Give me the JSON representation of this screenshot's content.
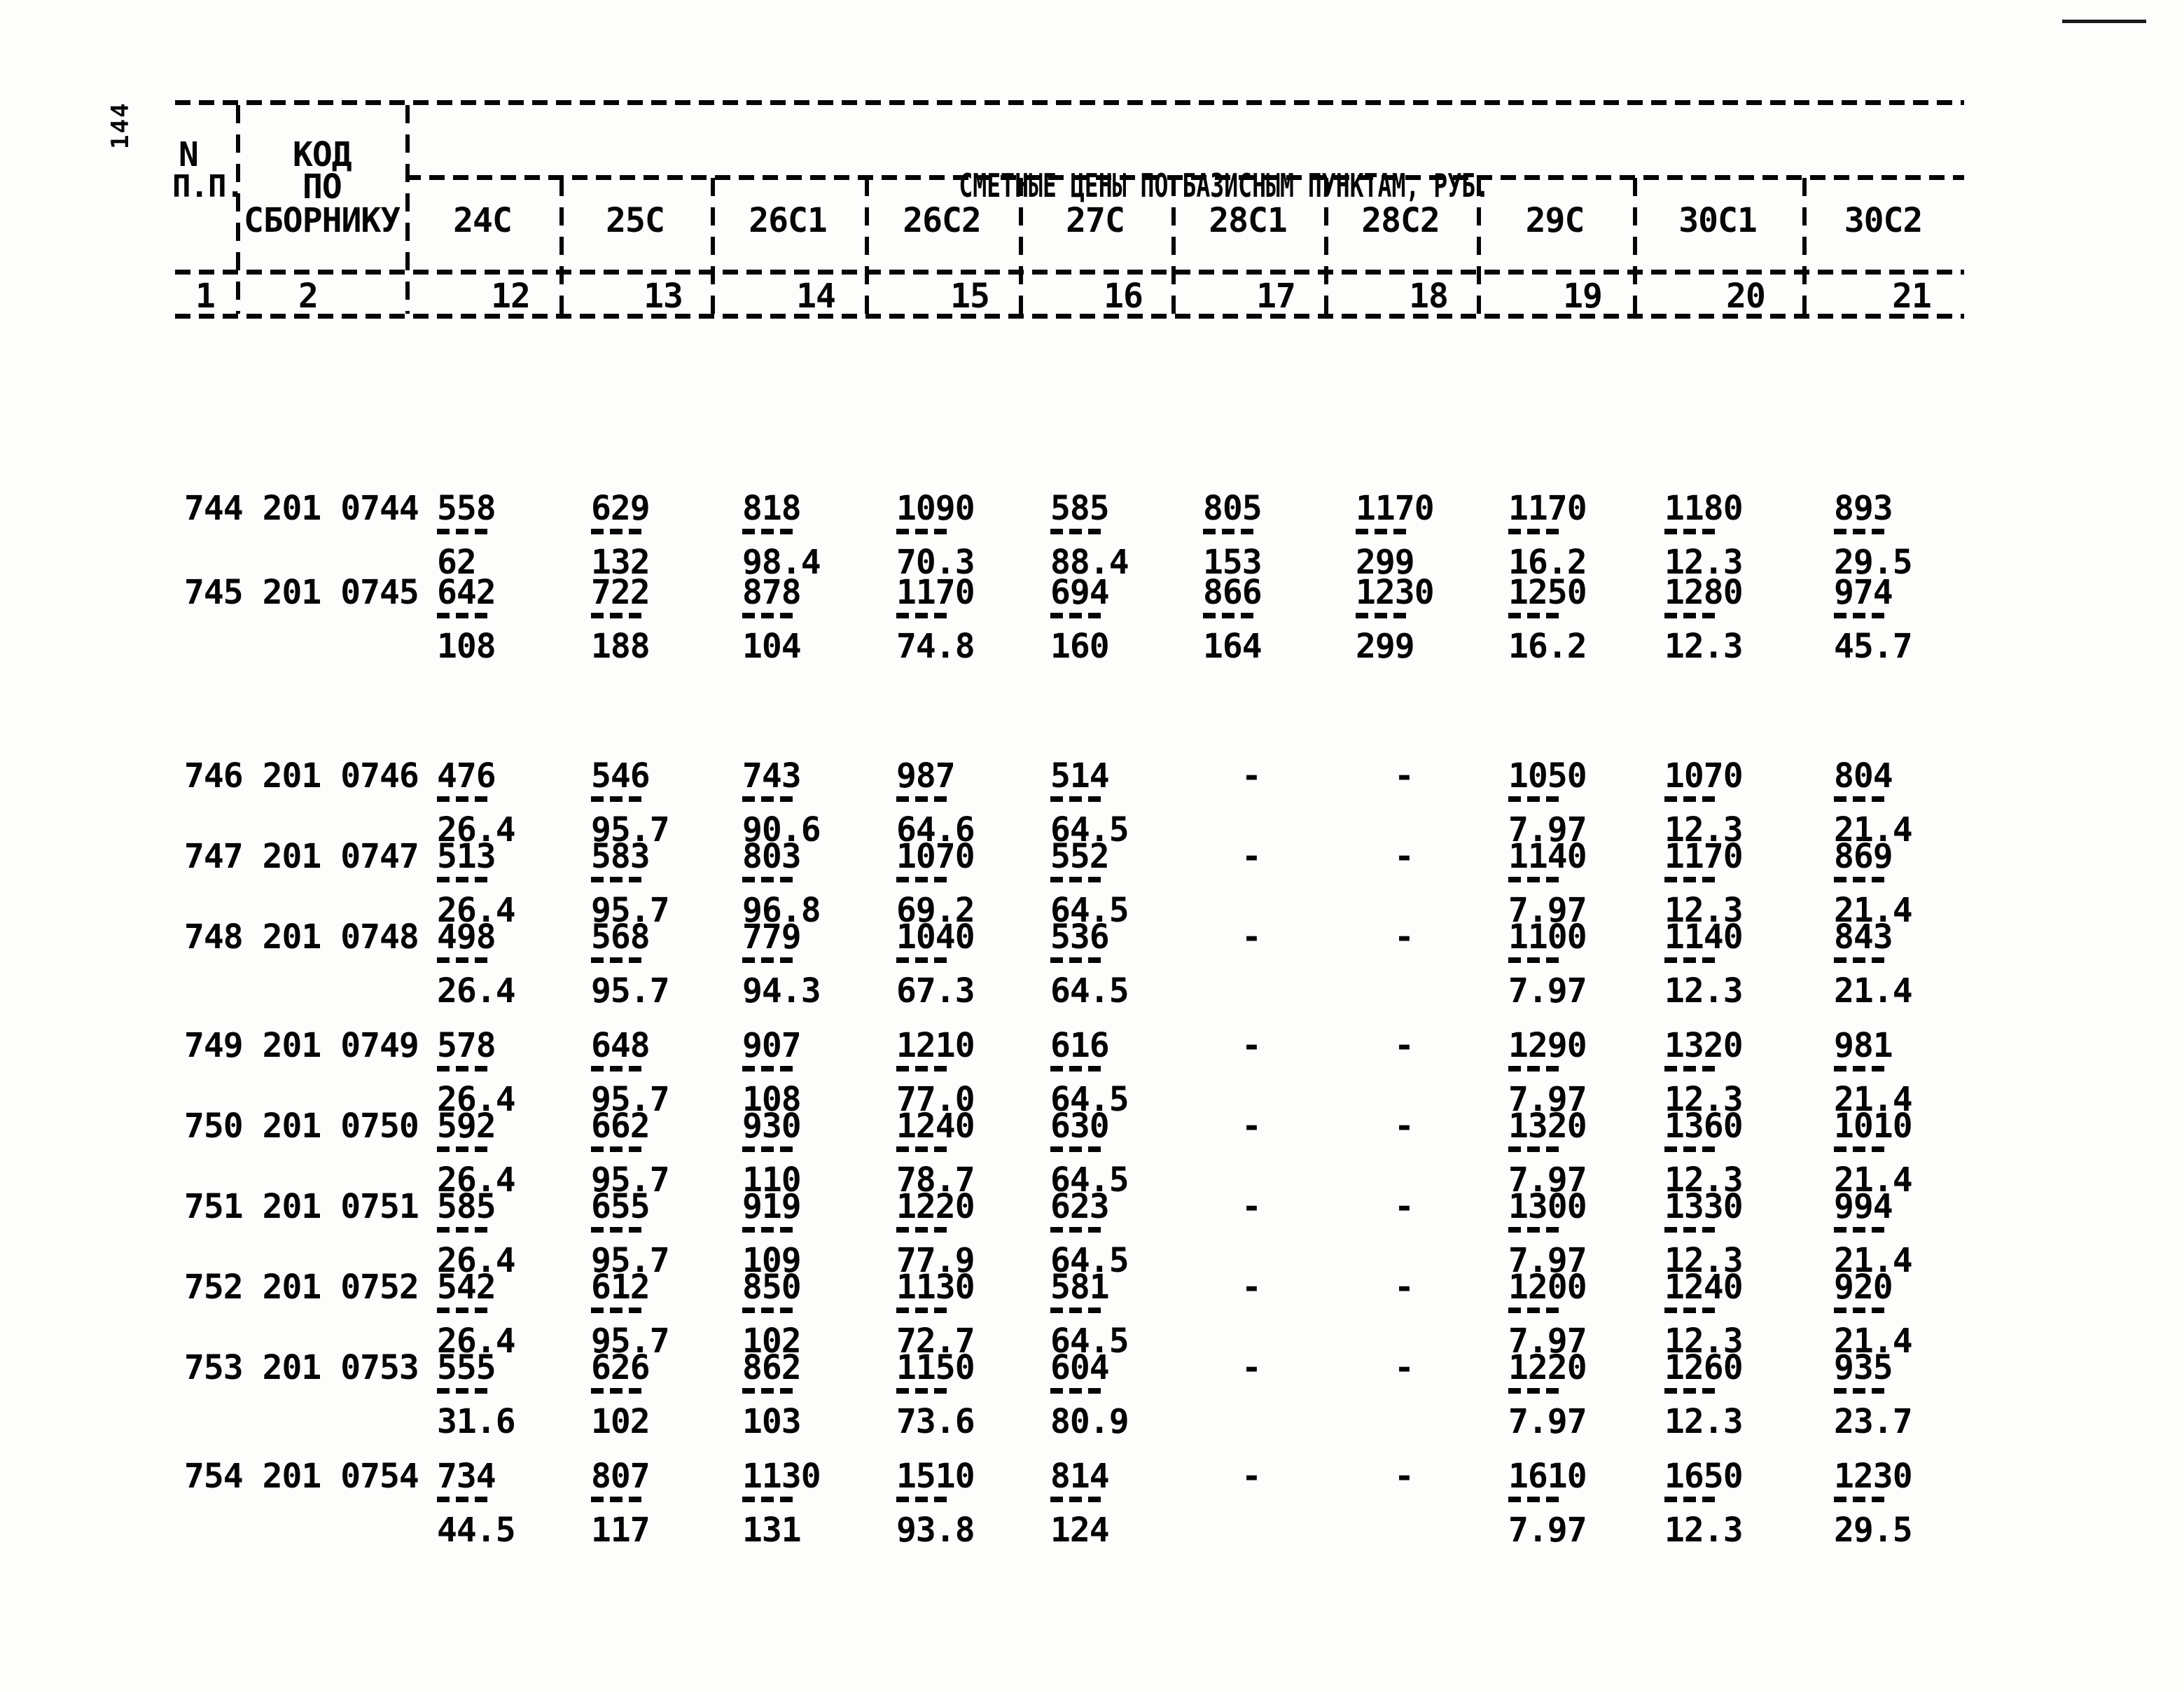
{
  "page": {
    "page_number": "144"
  },
  "table": {
    "header": {
      "col1_line1": "N",
      "col1_line2": "П.П.",
      "col2_line1": "КОД",
      "col2_line2": "ПО",
      "col2_line3": "СБОРНИКУ",
      "span_title": "СМЕТНЫЕ ЦЕНЫ ПО БАЗИСНЫМ ПУНКТАМ, РУБ.",
      "columns": [
        "24С",
        "25С",
        "26С1",
        "26С2",
        "27С",
        "28С1",
        "28С2",
        "29С",
        "30С1",
        "30С2"
      ],
      "col_numbers": [
        "1",
        "2",
        "12",
        "13",
        "14",
        "15",
        "16",
        "17",
        "18",
        "19",
        "20",
        "21"
      ]
    },
    "rows": [
      {
        "num": "744",
        "code": "201 0744",
        "cells": [
          {
            "n": "558",
            "d": "62"
          },
          {
            "n": "629",
            "d": "132"
          },
          {
            "n": "818",
            "d": "98.4"
          },
          {
            "n": "1090",
            "d": "70.3"
          },
          {
            "n": "585",
            "d": "88.4"
          },
          {
            "n": "805",
            "d": "153"
          },
          {
            "n": "1170",
            "d": "299"
          },
          {
            "n": "1170",
            "d": "16.2"
          },
          {
            "n": "1180",
            "d": "12.3"
          },
          {
            "n": "893",
            "d": "29.5"
          }
        ]
      },
      {
        "num": "745",
        "code": "201 0745",
        "cells": [
          {
            "n": "642",
            "d": "108"
          },
          {
            "n": "722",
            "d": "188"
          },
          {
            "n": "878",
            "d": "104"
          },
          {
            "n": "1170",
            "d": "74.8"
          },
          {
            "n": "694",
            "d": "160"
          },
          {
            "n": "866",
            "d": "164"
          },
          {
            "n": "1230",
            "d": "299"
          },
          {
            "n": "1250",
            "d": "16.2"
          },
          {
            "n": "1280",
            "d": "12.3"
          },
          {
            "n": "974",
            "d": "45.7"
          }
        ]
      },
      {
        "num": "746",
        "code": "201 0746",
        "cells": [
          {
            "n": "476",
            "d": "26.4"
          },
          {
            "n": "546",
            "d": "95.7"
          },
          {
            "n": "743",
            "d": "90.6"
          },
          {
            "n": "987",
            "d": "64.6"
          },
          {
            "n": "514",
            "d": "64.5"
          },
          {
            "n": "-"
          },
          {
            "n": "-"
          },
          {
            "n": "1050",
            "d": "7.97"
          },
          {
            "n": "1070",
            "d": "12.3"
          },
          {
            "n": "804",
            "d": "21.4"
          }
        ]
      },
      {
        "num": "747",
        "code": "201 0747",
        "cells": [
          {
            "n": "513",
            "d": "26.4"
          },
          {
            "n": "583",
            "d": "95.7"
          },
          {
            "n": "803",
            "d": "96.8"
          },
          {
            "n": "1070",
            "d": "69.2"
          },
          {
            "n": "552",
            "d": "64.5"
          },
          {
            "n": "-"
          },
          {
            "n": "-"
          },
          {
            "n": "1140",
            "d": "7.97"
          },
          {
            "n": "1170",
            "d": "12.3"
          },
          {
            "n": "869",
            "d": "21.4"
          }
        ]
      },
      {
        "num": "748",
        "code": "201 0748",
        "cells": [
          {
            "n": "498",
            "d": "26.4"
          },
          {
            "n": "568",
            "d": "95.7"
          },
          {
            "n": "779",
            "d": "94.3"
          },
          {
            "n": "1040",
            "d": "67.3"
          },
          {
            "n": "536",
            "d": "64.5"
          },
          {
            "n": "-"
          },
          {
            "n": "-"
          },
          {
            "n": "1100",
            "d": "7.97"
          },
          {
            "n": "1140",
            "d": "12.3"
          },
          {
            "n": "843",
            "d": "21.4"
          }
        ]
      },
      {
        "num": "749",
        "code": "201 0749",
        "cells": [
          {
            "n": "578",
            "d": "26.4"
          },
          {
            "n": "648",
            "d": "95.7"
          },
          {
            "n": "907",
            "d": "108"
          },
          {
            "n": "1210",
            "d": "77.0"
          },
          {
            "n": "616",
            "d": "64.5"
          },
          {
            "n": "-"
          },
          {
            "n": "-"
          },
          {
            "n": "1290",
            "d": "7.97"
          },
          {
            "n": "1320",
            "d": "12.3"
          },
          {
            "n": "981",
            "d": "21.4"
          }
        ]
      },
      {
        "num": "750",
        "code": "201 0750",
        "cells": [
          {
            "n": "592",
            "d": "26.4"
          },
          {
            "n": "662",
            "d": "95.7"
          },
          {
            "n": "930",
            "d": "110"
          },
          {
            "n": "1240",
            "d": "78.7"
          },
          {
            "n": "630",
            "d": "64.5"
          },
          {
            "n": "-"
          },
          {
            "n": "-"
          },
          {
            "n": "1320",
            "d": "7.97"
          },
          {
            "n": "1360",
            "d": "12.3"
          },
          {
            "n": "1010",
            "d": "21.4"
          }
        ]
      },
      {
        "num": "751",
        "code": "201 0751",
        "cells": [
          {
            "n": "585",
            "d": "26.4"
          },
          {
            "n": "655",
            "d": "95.7"
          },
          {
            "n": "919",
            "d": "109"
          },
          {
            "n": "1220",
            "d": "77.9"
          },
          {
            "n": "623",
            "d": "64.5"
          },
          {
            "n": "-"
          },
          {
            "n": "-"
          },
          {
            "n": "1300",
            "d": "7.97"
          },
          {
            "n": "1330",
            "d": "12.3"
          },
          {
            "n": "994",
            "d": "21.4"
          }
        ]
      },
      {
        "num": "752",
        "code": "201 0752",
        "cells": [
          {
            "n": "542",
            "d": "26.4"
          },
          {
            "n": "612",
            "d": "95.7"
          },
          {
            "n": "850",
            "d": "102"
          },
          {
            "n": "1130",
            "d": "72.7"
          },
          {
            "n": "581",
            "d": "64.5"
          },
          {
            "n": "-"
          },
          {
            "n": "-"
          },
          {
            "n": "1200",
            "d": "7.97"
          },
          {
            "n": "1240",
            "d": "12.3"
          },
          {
            "n": "920",
            "d": "21.4"
          }
        ]
      },
      {
        "num": "753",
        "code": "201 0753",
        "cells": [
          {
            "n": "555",
            "d": "31.6"
          },
          {
            "n": "626",
            "d": "102"
          },
          {
            "n": "862",
            "d": "103"
          },
          {
            "n": "1150",
            "d": "73.6"
          },
          {
            "n": "604",
            "d": "80.9"
          },
          {
            "n": "-"
          },
          {
            "n": "-"
          },
          {
            "n": "1220",
            "d": "7.97"
          },
          {
            "n": "1260",
            "d": "12.3"
          },
          {
            "n": "935",
            "d": "23.7"
          }
        ]
      },
      {
        "num": "754",
        "code": "201 0754",
        "cells": [
          {
            "n": "734",
            "d": "44.5"
          },
          {
            "n": "807",
            "d": "117"
          },
          {
            "n": "1130",
            "d": "131"
          },
          {
            "n": "1510",
            "d": "93.8"
          },
          {
            "n": "814",
            "d": "124"
          },
          {
            "n": "-"
          },
          {
            "n": "-"
          },
          {
            "n": "1610",
            "d": "7.97"
          },
          {
            "n": "1650",
            "d": "12.3"
          },
          {
            "n": "1230",
            "d": "29.5"
          }
        ]
      }
    ]
  }
}
